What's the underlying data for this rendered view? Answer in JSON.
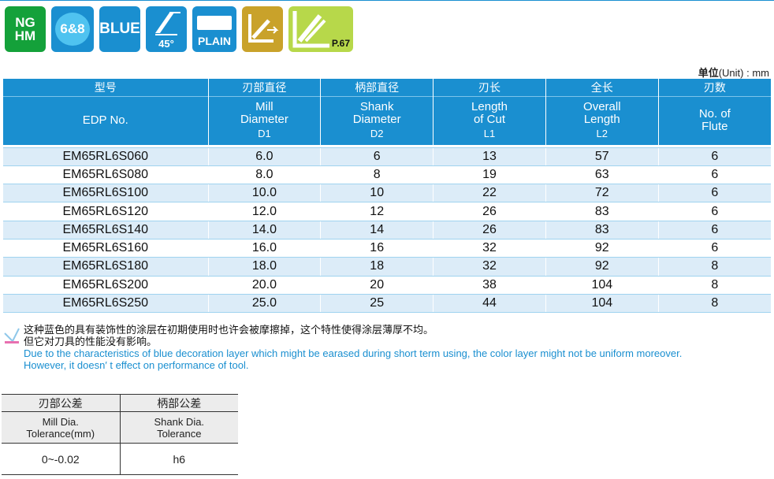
{
  "badges": [
    {
      "name": "nghm",
      "text_line1": "NG",
      "text_line2": "HM"
    },
    {
      "name": "flute-count",
      "text": "6&8"
    },
    {
      "name": "coating",
      "text": "BLUE"
    },
    {
      "name": "helix-angle",
      "text": "45°"
    },
    {
      "name": "shank-type",
      "text": "PLAIN"
    },
    {
      "name": "tilt-icon"
    },
    {
      "name": "page-ref",
      "text": "P.67"
    }
  ],
  "unit": {
    "label_cn": "单位",
    "label_en": "(Unit) : mm"
  },
  "table": {
    "headers_cn": [
      "型号",
      "刃部直径",
      "柄部直径",
      "刃长",
      "全长",
      "刃数"
    ],
    "headers_en": [
      {
        "line1": "EDP No.",
        "line2": "",
        "sub": ""
      },
      {
        "line1": "Mill",
        "line2": "Diameter",
        "sub": "D1"
      },
      {
        "line1": "Shank",
        "line2": "Diameter",
        "sub": "D2"
      },
      {
        "line1": "Length",
        "line2": "of Cut",
        "sub": "L1"
      },
      {
        "line1": "Overall",
        "line2": "Length",
        "sub": "L2"
      },
      {
        "line1": "No. of",
        "line2": "Flute",
        "sub": ""
      }
    ],
    "rows": [
      [
        "EM65RL6S060",
        "6.0",
        "6",
        "13",
        "57",
        "6"
      ],
      [
        "EM65RL6S080",
        "8.0",
        "8",
        "19",
        "63",
        "6"
      ],
      [
        "EM65RL6S100",
        "10.0",
        "10",
        "22",
        "72",
        "6"
      ],
      [
        "EM65RL6S120",
        "12.0",
        "12",
        "26",
        "83",
        "6"
      ],
      [
        "EM65RL6S140",
        "14.0",
        "14",
        "26",
        "83",
        "6"
      ],
      [
        "EM65RL6S160",
        "16.0",
        "16",
        "32",
        "92",
        "6"
      ],
      [
        "EM65RL6S180",
        "18.0",
        "18",
        "32",
        "92",
        "8"
      ],
      [
        "EM65RL6S200",
        "20.0",
        "20",
        "38",
        "104",
        "8"
      ],
      [
        "EM65RL6S250",
        "25.0",
        "25",
        "44",
        "104",
        "8"
      ]
    ]
  },
  "notes": {
    "cn_line1": "这种蓝色的具有装饰性的涂层在初期使用时也许会被摩擦掉，这个特性使得涂层薄厚不均。",
    "cn_line2": "但它对刀具的性能没有影响。",
    "en_line1": "Due to the characteristics of blue decoration layer which might be earased during short term using, the color layer might not be uniform moreover.",
    "en_line2": "However, it doesn′ t effect on performance of tool."
  },
  "tolerance": {
    "headers_cn": [
      "刃部公差",
      "柄部公差"
    ],
    "headers_en": [
      {
        "line1": "Mill  Dia.",
        "line2": "Tolerance(mm)"
      },
      {
        "line1": "Shank   Dia.",
        "line2": "Tolerance"
      }
    ],
    "values": [
      "0~-0.02",
      "h6"
    ]
  },
  "colors": {
    "accent": "#1a8fd0",
    "row_alt": "#dcecf8",
    "green": "#14a13a",
    "gold": "#c9a22a",
    "lime": "#b7d84a"
  }
}
